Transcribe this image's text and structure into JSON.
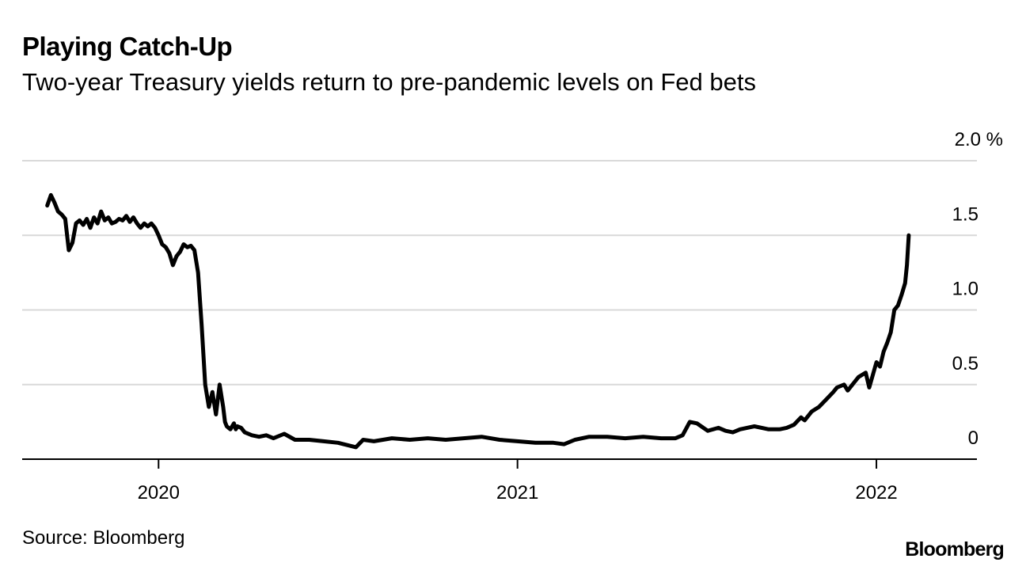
{
  "title": "Playing Catch-Up",
  "subtitle": "Two-year Treasury yields return to pre-pandemic levels on Fed bets",
  "source": "Source: Bloomberg",
  "brand": "Bloomberg",
  "colors": {
    "line": "#000000",
    "grid": "#d9d9d9",
    "axis": "#000000",
    "background": "#ffffff"
  },
  "chart_data": {
    "type": "line",
    "title": "Playing Catch-Up",
    "subtitle": "Two-year Treasury yields return to pre-pandemic levels on Fed bets",
    "xlabel": "",
    "ylabel": "%",
    "xlim": [
      2019.62,
      2022.28
    ],
    "ylim": [
      0,
      2.0
    ],
    "y_ticks": [
      {
        "value": 0,
        "label": "0"
      },
      {
        "value": 0.5,
        "label": "0.5"
      },
      {
        "value": 1.0,
        "label": "1.0"
      },
      {
        "value": 1.5,
        "label": "1.5"
      },
      {
        "value": 2.0,
        "label": "2.0 %"
      }
    ],
    "x_ticks": [
      {
        "value": 2020,
        "label": "2020"
      },
      {
        "value": 2021,
        "label": "2021"
      },
      {
        "value": 2022,
        "label": "2022"
      }
    ],
    "grid": true,
    "series": [
      {
        "name": "Two-year Treasury yield",
        "x": [
          2019.69,
          2019.7,
          2019.71,
          2019.72,
          2019.73,
          2019.74,
          2019.75,
          2019.76,
          2019.77,
          2019.78,
          2019.79,
          2019.8,
          2019.81,
          2019.82,
          2019.83,
          2019.84,
          2019.85,
          2019.86,
          2019.87,
          2019.88,
          2019.89,
          2019.9,
          2019.91,
          2019.92,
          2019.93,
          2019.94,
          2019.95,
          2019.96,
          2019.97,
          2019.98,
          2019.99,
          2020.0,
          2020.01,
          2020.02,
          2020.03,
          2020.04,
          2020.05,
          2020.06,
          2020.07,
          2020.08,
          2020.09,
          2020.1,
          2020.11,
          2020.12,
          2020.13,
          2020.14,
          2020.15,
          2020.16,
          2020.17,
          2020.18,
          2020.185,
          2020.19,
          2020.2,
          2020.21,
          2020.215,
          2020.22,
          2020.23,
          2020.24,
          2020.26,
          2020.28,
          2020.3,
          2020.32,
          2020.35,
          2020.38,
          2020.42,
          2020.46,
          2020.5,
          2020.55,
          2020.57,
          2020.6,
          2020.65,
          2020.7,
          2020.75,
          2020.8,
          2020.85,
          2020.9,
          2020.95,
          2021.0,
          2021.05,
          2021.1,
          2021.13,
          2021.16,
          2021.2,
          2021.25,
          2021.3,
          2021.35,
          2021.4,
          2021.44,
          2021.46,
          2021.48,
          2021.5,
          2021.53,
          2021.56,
          2021.58,
          2021.6,
          2021.62,
          2021.66,
          2021.7,
          2021.73,
          2021.75,
          2021.77,
          2021.79,
          2021.8,
          2021.82,
          2021.84,
          2021.86,
          2021.88,
          2021.89,
          2021.91,
          2021.92,
          2021.94,
          2021.95,
          2021.97,
          2021.98,
          2022.0,
          2022.01,
          2022.02,
          2022.03,
          2022.04,
          2022.05,
          2022.06,
          2022.07,
          2022.08,
          2022.085,
          2022.09
        ],
        "values": [
          1.7,
          1.77,
          1.72,
          1.66,
          1.64,
          1.61,
          1.4,
          1.45,
          1.58,
          1.6,
          1.57,
          1.61,
          1.55,
          1.62,
          1.58,
          1.66,
          1.6,
          1.62,
          1.58,
          1.59,
          1.61,
          1.6,
          1.63,
          1.59,
          1.62,
          1.58,
          1.55,
          1.58,
          1.56,
          1.58,
          1.55,
          1.5,
          1.44,
          1.42,
          1.38,
          1.3,
          1.36,
          1.39,
          1.44,
          1.42,
          1.43,
          1.4,
          1.25,
          0.9,
          0.5,
          0.35,
          0.45,
          0.3,
          0.5,
          0.35,
          0.25,
          0.22,
          0.2,
          0.24,
          0.2,
          0.22,
          0.21,
          0.18,
          0.16,
          0.15,
          0.16,
          0.14,
          0.17,
          0.13,
          0.13,
          0.12,
          0.11,
          0.08,
          0.13,
          0.12,
          0.14,
          0.13,
          0.14,
          0.13,
          0.14,
          0.15,
          0.13,
          0.12,
          0.11,
          0.11,
          0.1,
          0.13,
          0.15,
          0.15,
          0.14,
          0.15,
          0.14,
          0.14,
          0.16,
          0.25,
          0.24,
          0.19,
          0.21,
          0.19,
          0.18,
          0.2,
          0.22,
          0.2,
          0.2,
          0.21,
          0.23,
          0.28,
          0.26,
          0.32,
          0.35,
          0.4,
          0.45,
          0.48,
          0.5,
          0.46,
          0.52,
          0.55,
          0.58,
          0.48,
          0.65,
          0.62,
          0.72,
          0.78,
          0.85,
          1.0,
          1.03,
          1.1,
          1.18,
          1.3,
          1.5
        ]
      }
    ]
  }
}
